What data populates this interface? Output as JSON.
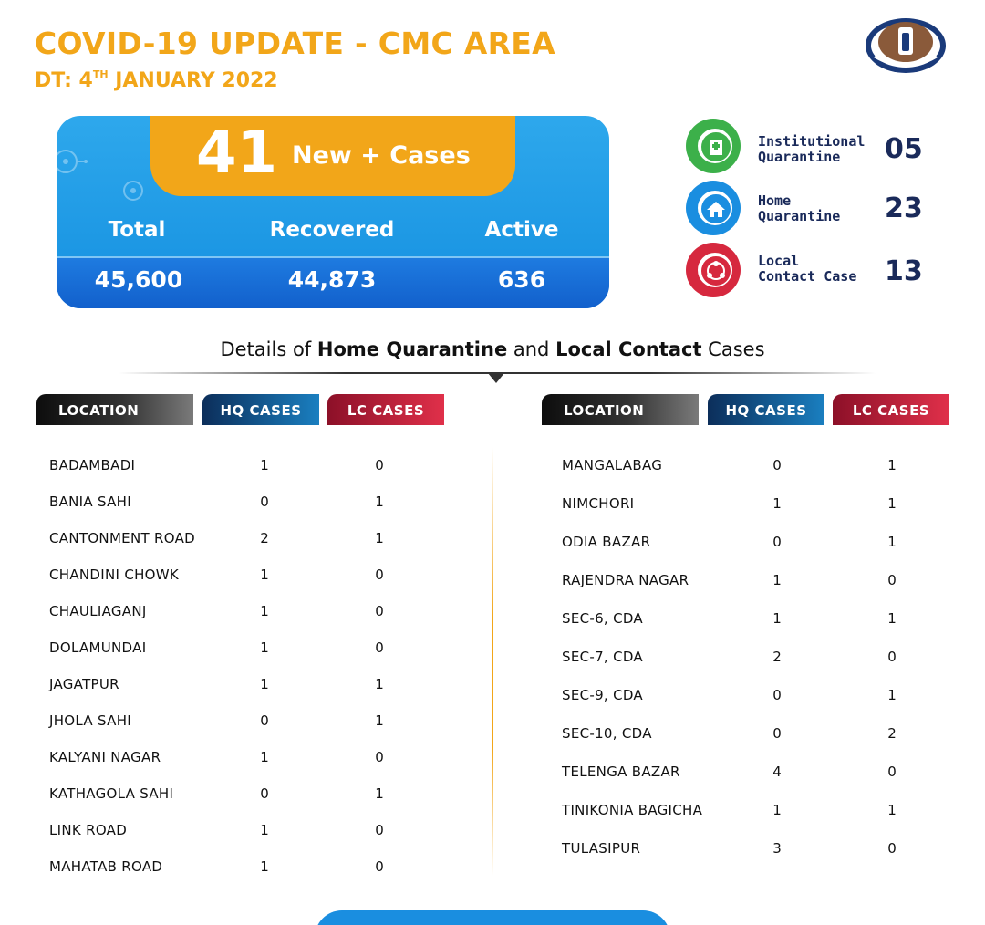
{
  "header": {
    "title": "COVID-19 UPDATE - CMC AREA",
    "date_prefix": "DT: 4",
    "date_sup": "TH",
    "date_suffix": " JANUARY 2022",
    "logo_icon": "cuttack-municipal-corporation-seal"
  },
  "summary": {
    "new_cases": "41",
    "new_cases_label": "New + Cases",
    "total_label": "Total",
    "recovered_label": "Recovered",
    "active_label": "Active",
    "total": "45,600",
    "recovered": "44,873",
    "active": "636"
  },
  "side_stats": [
    {
      "line1": "Institutional",
      "line2": "Quarantine",
      "value": "05",
      "icon": "hospital-icon",
      "color": "#3cb04a"
    },
    {
      "line1": "Home",
      "line2": "Quarantine",
      "value": "23",
      "icon": "home-icon",
      "color": "#1a8ee0"
    },
    {
      "line1": "Local",
      "line2": "Contact Case",
      "value": "13",
      "icon": "contact-people-icon",
      "color": "#d6283e"
    }
  ],
  "subheading": {
    "part1": "Details of ",
    "bold1": "Home Quarantine",
    "part2": " and ",
    "bold2": "Local Contact",
    "part3": " Cases"
  },
  "columns": {
    "location": "LOCATION",
    "hq": "HQ CASES",
    "lc": "LC CASES"
  },
  "left_table": [
    {
      "location": "BADAMBADI",
      "hq": "1",
      "lc": "0"
    },
    {
      "location": "BANIA SAHI",
      "hq": "0",
      "lc": "1"
    },
    {
      "location": "CANTONMENT ROAD",
      "hq": "2",
      "lc": "1"
    },
    {
      "location": "CHANDINI CHOWK",
      "hq": "1",
      "lc": "0"
    },
    {
      "location": "CHAULIAGANJ",
      "hq": "1",
      "lc": "0"
    },
    {
      "location": "DOLAMUNDAI",
      "hq": "1",
      "lc": "0"
    },
    {
      "location": "JAGATPUR",
      "hq": "1",
      "lc": "1"
    },
    {
      "location": "JHOLA SAHI",
      "hq": "0",
      "lc": "1"
    },
    {
      "location": "KALYANI NAGAR",
      "hq": "1",
      "lc": "0"
    },
    {
      "location": "KATHAGOLA SAHI",
      "hq": "0",
      "lc": "1"
    },
    {
      "location": "LINK ROAD",
      "hq": "1",
      "lc": "0"
    },
    {
      "location": "MAHATAB ROAD",
      "hq": "1",
      "lc": "0"
    }
  ],
  "right_table": [
    {
      "location": "MANGALABAG",
      "hq": "0",
      "lc": "1"
    },
    {
      "location": "NIMCHORI",
      "hq": "1",
      "lc": "1"
    },
    {
      "location": "ODIA BAZAR",
      "hq": "0",
      "lc": "1"
    },
    {
      "location": "RAJENDRA NAGAR",
      "hq": "1",
      "lc": "0"
    },
    {
      "location": "SEC-6, CDA",
      "hq": "1",
      "lc": "1"
    },
    {
      "location": "SEC-7, CDA",
      "hq": "2",
      "lc": "0"
    },
    {
      "location": "SEC-9, CDA",
      "hq": "0",
      "lc": "1"
    },
    {
      "location": "SEC-10, CDA",
      "hq": "0",
      "lc": "2"
    },
    {
      "location": "TELENGA BAZAR",
      "hq": "4",
      "lc": "0"
    },
    {
      "location": "TINIKONIA BAGICHA",
      "hq": "1",
      "lc": "1"
    },
    {
      "location": "TULASIPUR",
      "hq": "3",
      "lc": "0"
    }
  ],
  "colors": {
    "accent": "#f2a619",
    "blue": "#1a8ee0",
    "navy": "#1a2a5a",
    "red": "#d6283e",
    "green": "#3cb04a"
  }
}
